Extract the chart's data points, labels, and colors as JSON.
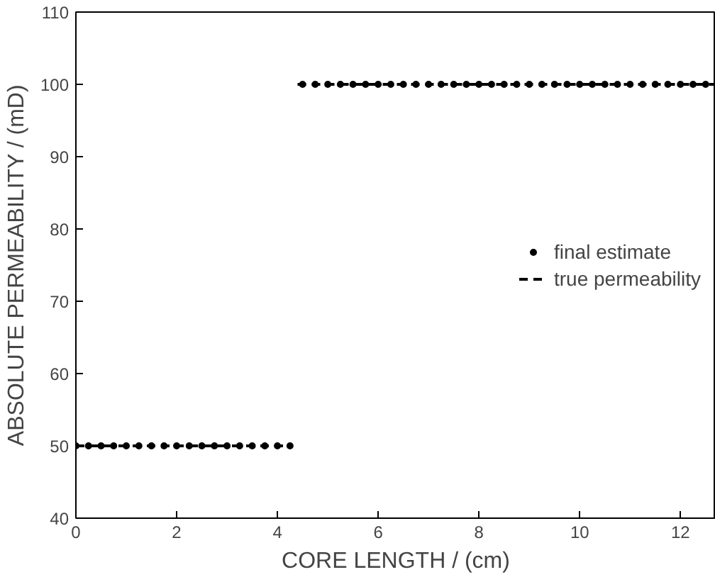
{
  "chart_data": {
    "type": "line",
    "xlabel": "CORE LENGTH / (cm)",
    "ylabel": "ABSOLUTE PERMEABILITY / (mD)",
    "xlim": [
      0,
      12.7
    ],
    "ylim": [
      40,
      110
    ],
    "xticks": [
      0,
      2,
      4,
      6,
      8,
      10,
      12
    ],
    "yticks": [
      40,
      50,
      60,
      70,
      80,
      90,
      100,
      110
    ],
    "grid": false,
    "legend": "right",
    "series": [
      {
        "name": "final estimate",
        "type": "scatter",
        "marker": "circle",
        "color": "#000000",
        "x": [
          0,
          0.25,
          0.5,
          0.75,
          1,
          1.25,
          1.5,
          1.75,
          2,
          2.25,
          2.5,
          2.75,
          3,
          3.25,
          3.5,
          3.75,
          4,
          4.25,
          4.5,
          4.75,
          5,
          5.25,
          5.5,
          5.75,
          6,
          6.25,
          6.5,
          6.75,
          7,
          7.25,
          7.5,
          7.75,
          8,
          8.25,
          8.5,
          8.75,
          9,
          9.25,
          9.5,
          9.75,
          10,
          10.25,
          10.5,
          10.75,
          11,
          11.25,
          11.5,
          11.75,
          12,
          12.25,
          12.5
        ],
        "values": [
          50,
          50,
          50,
          50,
          50,
          50,
          50,
          50,
          50,
          50,
          50,
          50,
          50,
          50,
          50,
          50,
          50,
          50,
          100,
          100,
          100,
          100,
          100,
          100,
          100,
          100,
          100,
          100,
          100,
          100,
          100,
          100,
          100,
          100,
          100,
          100,
          100,
          100,
          100,
          100,
          100,
          100,
          100,
          100,
          100,
          100,
          100,
          100,
          100,
          100,
          100
        ]
      },
      {
        "name": "true permeability",
        "line_style": "dashed",
        "color": "#000000",
        "x": [
          0,
          4.3,
          4.35,
          4.4,
          12.7
        ],
        "values": [
          50,
          50,
          null,
          100,
          100
        ]
      }
    ]
  }
}
